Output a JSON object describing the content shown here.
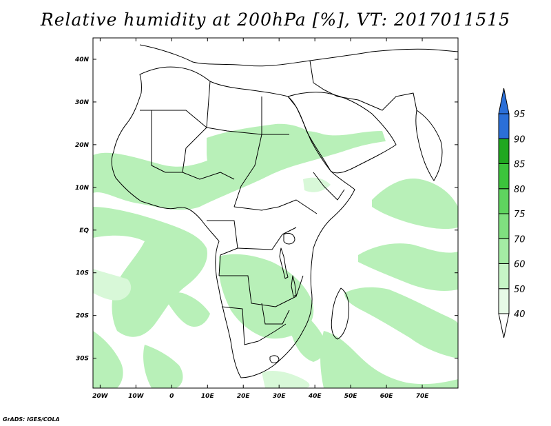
{
  "title": "Relative humidity at 200hPa [%], VT: 2017011515",
  "credit": "GrADS: IGES/COLA",
  "axes": {
    "lon_labels": [
      "20W",
      "10W",
      "0",
      "10E",
      "20E",
      "30E",
      "40E",
      "50E",
      "60E",
      "70E"
    ],
    "lat_labels": [
      "40N",
      "30N",
      "20N",
      "10N",
      "EQ",
      "10S",
      "20S",
      "30S"
    ]
  },
  "colorbar": {
    "levels": [
      "40",
      "50",
      "60",
      "70",
      "75",
      "80",
      "85",
      "90",
      "95"
    ],
    "colors": [
      "#ffffff",
      "#e6fae6",
      "#c6f5c6",
      "#a4eca4",
      "#80e080",
      "#5fd45f",
      "#3cc43c",
      "#20a820",
      "#2b6fd8"
    ]
  },
  "map_data": {
    "lon_range": [
      -22,
      80
    ],
    "lat_range": [
      -37,
      45
    ],
    "field_color": "#b8f0b8",
    "field_color_light": "#d8f8d8"
  }
}
